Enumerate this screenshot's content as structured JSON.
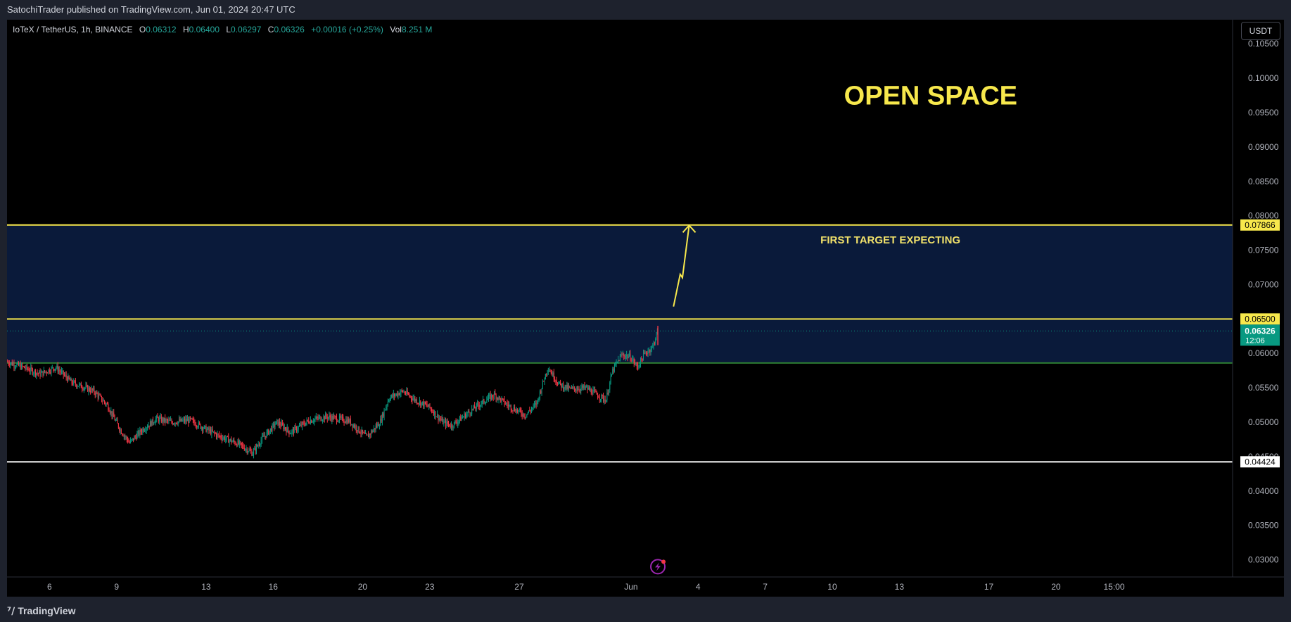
{
  "header": {
    "published": "SatochiTrader published on TradingView.com, Jun 01, 2024 20:47 UTC"
  },
  "legend": {
    "symbol": "IoTeX / TetherUS, 1h, BINANCE",
    "o_label": "O",
    "o": "0.06312",
    "h_label": "H",
    "h": "0.06400",
    "l_label": "L",
    "l": "0.06297",
    "c_label": "C",
    "c": "0.06326",
    "change": "+0.00016 (+0.25%)",
    "vol_label": "Vol",
    "vol": "8.251 M"
  },
  "currency_button": "USDT",
  "footer": {
    "brand": "TradingView",
    "logo_icon": "tradingview-logo-icon"
  },
  "chart_data": {
    "type": "candlestick",
    "symbol": "IoTeX / TetherUS",
    "timeframe": "1h",
    "exchange": "BINANCE",
    "y_axis": {
      "ticks": [
        "0.10500",
        "0.10000",
        "0.09500",
        "0.09000",
        "0.08500",
        "0.08000",
        "0.07500",
        "0.07000",
        "0.06500",
        "0.06000",
        "0.05500",
        "0.05000",
        "0.04500",
        "0.04000",
        "0.03500",
        "0.03000"
      ],
      "range": [
        0.0275,
        0.1085
      ]
    },
    "x_axis": {
      "ticks": [
        {
          "label": "6",
          "t": 6
        },
        {
          "label": "9",
          "t": 9
        },
        {
          "label": "13",
          "t": 13
        },
        {
          "label": "16",
          "t": 16
        },
        {
          "label": "20",
          "t": 20
        },
        {
          "label": "23",
          "t": 23
        },
        {
          "label": "27",
          "t": 27
        },
        {
          "label": "Jun",
          "t": 32
        },
        {
          "label": "4",
          "t": 35
        },
        {
          "label": "7",
          "t": 38
        },
        {
          "label": "10",
          "t": 41
        },
        {
          "label": "13",
          "t": 44
        },
        {
          "label": "17",
          "t": 48
        },
        {
          "label": "20",
          "t": 51
        },
        {
          "label": "15:00",
          "t": 53.6
        }
      ],
      "range": [
        4.1,
        58.9
      ]
    },
    "price_path": [
      [
        4.1,
        0.0588
      ],
      [
        5.0,
        0.0578
      ],
      [
        5.6,
        0.057
      ],
      [
        6.3,
        0.058
      ],
      [
        7.0,
        0.0558
      ],
      [
        8.0,
        0.0545
      ],
      [
        8.6,
        0.0525
      ],
      [
        9.2,
        0.0488
      ],
      [
        9.6,
        0.047
      ],
      [
        10.2,
        0.049
      ],
      [
        10.8,
        0.0505
      ],
      [
        11.5,
        0.05
      ],
      [
        12.3,
        0.0503
      ],
      [
        13.0,
        0.049
      ],
      [
        13.6,
        0.048
      ],
      [
        14.5,
        0.0468
      ],
      [
        15.1,
        0.0455
      ],
      [
        15.5,
        0.0475
      ],
      [
        16.2,
        0.05
      ],
      [
        16.8,
        0.0485
      ],
      [
        17.6,
        0.0502
      ],
      [
        18.4,
        0.0508
      ],
      [
        19.4,
        0.0502
      ],
      [
        20.2,
        0.0478
      ],
      [
        20.8,
        0.05
      ],
      [
        21.2,
        0.0535
      ],
      [
        21.8,
        0.0545
      ],
      [
        22.4,
        0.0532
      ],
      [
        23.0,
        0.0522
      ],
      [
        23.6,
        0.05
      ],
      [
        24.0,
        0.0495
      ],
      [
        24.6,
        0.051
      ],
      [
        25.2,
        0.0525
      ],
      [
        25.9,
        0.054
      ],
      [
        26.5,
        0.0525
      ],
      [
        27.3,
        0.051
      ],
      [
        27.8,
        0.0527
      ],
      [
        28.3,
        0.058
      ],
      [
        28.8,
        0.0555
      ],
      [
        29.3,
        0.0548
      ],
      [
        30.0,
        0.055
      ],
      [
        30.5,
        0.054
      ],
      [
        30.9,
        0.0532
      ],
      [
        31.2,
        0.0575
      ],
      [
        31.6,
        0.0598
      ],
      [
        32.0,
        0.0595
      ],
      [
        32.3,
        0.058
      ],
      [
        32.6,
        0.0598
      ],
      [
        33.0,
        0.061
      ],
      [
        33.2,
        0.0632
      ]
    ],
    "horizontal_levels": [
      {
        "price": 0.07866,
        "label": "0.07866",
        "color": "#f7e84c"
      },
      {
        "price": 0.065,
        "label": "0.06500",
        "color": "#f7e84c"
      },
      {
        "price": 0.0586,
        "color": "#2e7d32"
      },
      {
        "price": 0.04424,
        "label": "0.04424",
        "color": "#ffffff"
      }
    ],
    "zones": [
      {
        "from": 0.065,
        "to": 0.07866,
        "color": "#0a1a3a"
      },
      {
        "from": 0.0586,
        "to": 0.065,
        "color": "#0a1a3a"
      }
    ],
    "current_price": {
      "value": "0.06326",
      "countdown": "12:06",
      "color": "#089981"
    },
    "annotations": {
      "open_space": {
        "text": "OPEN SPACE",
        "color": "#f7e84c",
        "t": 45.4,
        "price": 0.0962
      },
      "first_target": {
        "text": "FIRST TARGET EXPECTING",
        "color": "#f0e06a",
        "t": 43.6,
        "price": 0.076
      },
      "projection_arrow": [
        [
          33.9,
          0.0668
        ],
        [
          34.2,
          0.0715
        ],
        [
          34.3,
          0.071
        ],
        [
          34.6,
          0.0786
        ]
      ],
      "projection_color": "#f7e84c"
    },
    "bolt_icon": {
      "name": "lightning-icon",
      "t": 33.2,
      "price": 0.029
    }
  }
}
